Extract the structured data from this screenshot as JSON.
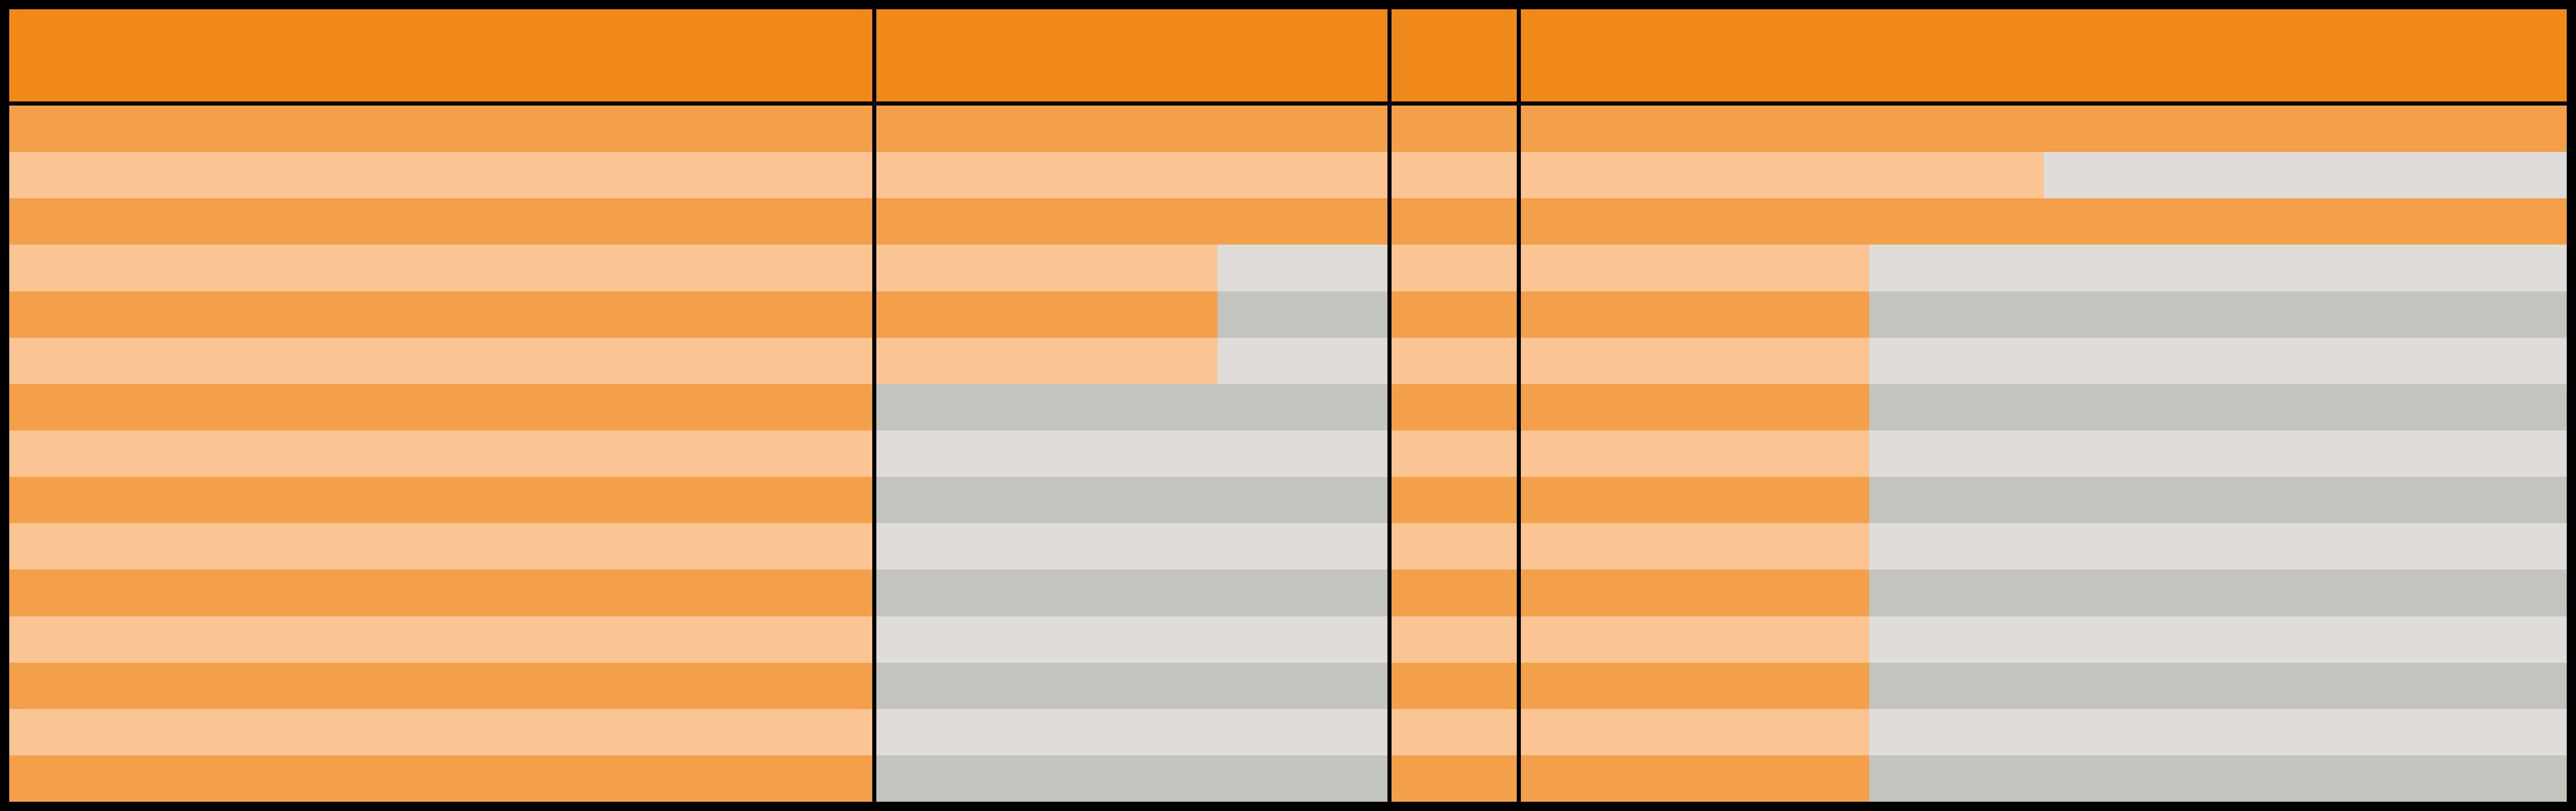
{
  "colors": {
    "header": "#F0891A",
    "row_dark": "#F4A04A",
    "row_light": "#FAC493",
    "empty_dark": "#C3C4BE",
    "empty_light": "#DFDCDA",
    "grid_lines": "#000000"
  },
  "table": {
    "row_count": 15,
    "columns": [
      {
        "fills": [
          1,
          1,
          1,
          1,
          1,
          1,
          1,
          1,
          1,
          1,
          1,
          1,
          1,
          1,
          1
        ]
      },
      {
        "fills": [
          1,
          1,
          1,
          0.667,
          0.667,
          0.667,
          0,
          0,
          0,
          0,
          0,
          0,
          0,
          0,
          0
        ]
      },
      {
        "fills": [
          1,
          1,
          1,
          1,
          1,
          1,
          1,
          1,
          1,
          1,
          1,
          1,
          1,
          1,
          1
        ]
      },
      {
        "fills": [
          1,
          0.5,
          1,
          0.333,
          0.333,
          0.333,
          0.333,
          0.333,
          0.333,
          0.333,
          0.333,
          0.333,
          0.333,
          0.333,
          0.333
        ]
      }
    ]
  }
}
